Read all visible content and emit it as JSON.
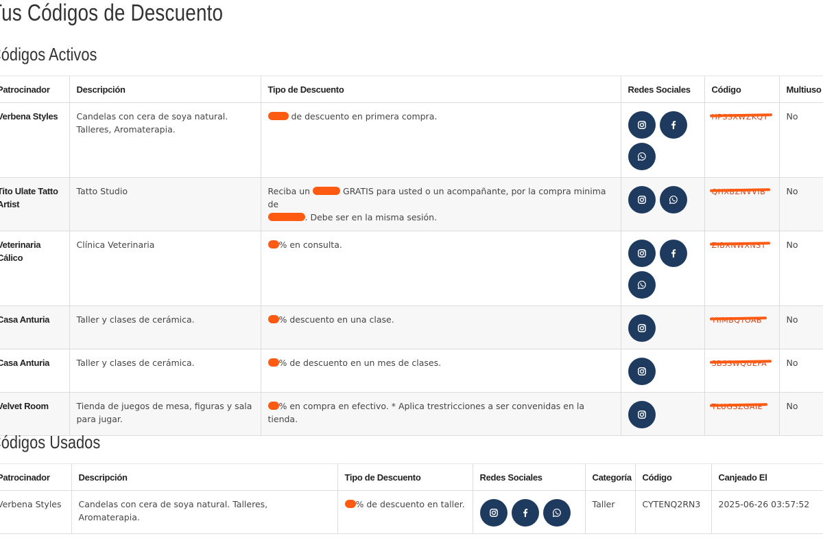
{
  "page_title": "Tus Códigos de Descuento",
  "active": {
    "heading": "Códigos Activos",
    "headers": [
      "Patrocinador",
      "Descripción",
      "Tipo de Descuento",
      "Redes Sociales",
      "Código",
      "Multiuso"
    ],
    "rows": [
      {
        "sponsor": "Verbena Styles",
        "description": "Candelas con cera de soya natural. Talleres, Aromaterapia.",
        "discount_after": "de descuento en primera compra.",
        "socials": [
          "instagram-icon",
          "facebook-icon",
          "whatsapp-icon"
        ],
        "code": "HPSSXWZKQY",
        "multi": "No"
      },
      {
        "sponsor": "Tito Ulate Tatto Artist",
        "description": "Tatto Studio",
        "discount_before": "Reciba un",
        "discount_mid": "GRATIS para usted o un acompañante, por la compra minima de",
        "discount_after": ". Debe ser en la misma sesión.",
        "socials": [
          "instagram-icon",
          "whatsapp-icon"
        ],
        "code": "QHXBZNVVIB",
        "multi": "No"
      },
      {
        "sponsor": "Veterinaria Cálico",
        "description": "Clínica Veterinaria",
        "discount_after": "% en consulta.",
        "socials": [
          "instagram-icon",
          "facebook-icon",
          "whatsapp-icon"
        ],
        "code": "ZIBXNWXNST",
        "multi": "No"
      },
      {
        "sponsor": "Casa Anturia",
        "description": "Taller y clases de cerámica.",
        "discount_after": "% descuento en una clase.",
        "socials": [
          "instagram-icon"
        ],
        "code": "YIIMBQYOAB",
        "multi": "No"
      },
      {
        "sponsor": "Casa Anturia",
        "description": "Taller y clases de cerámica.",
        "discount_after": "% de descuento en un mes de clases.",
        "socials": [
          "instagram-icon"
        ],
        "code": "SBSSWQUEFA",
        "multi": "No"
      },
      {
        "sponsor": "Velvet Room",
        "description": "Tienda de juegos de mesa, figuras y sala para jugar.",
        "discount_after": "% en compra en efectivo. * Aplica trestricciones a ser convenidas en la tienda.",
        "socials": [
          "instagram-icon"
        ],
        "code": "TLUGSZGAIE",
        "multi": "No"
      }
    ]
  },
  "used": {
    "heading": "Códigos Usados",
    "headers": [
      "Patrocinador",
      "Descripción",
      "Tipo de Descuento",
      "Redes Sociales",
      "Categoría",
      "Código",
      "Canjeado El"
    ],
    "rows": [
      {
        "sponsor": "Verbena Styles",
        "description": "Candelas con cera de soya natural. Talleres, Aromaterapia.",
        "discount_after": "% de descuento en taller.",
        "socials": [
          "instagram-icon",
          "facebook-icon",
          "whatsapp-icon"
        ],
        "category": "Taller",
        "code": "CYTENQ2RN3",
        "redeemed": "2025-06-26 03:57:52"
      }
    ]
  },
  "colors": {
    "social_button": "#1e3a5f",
    "redaction": "#ff5a12"
  }
}
